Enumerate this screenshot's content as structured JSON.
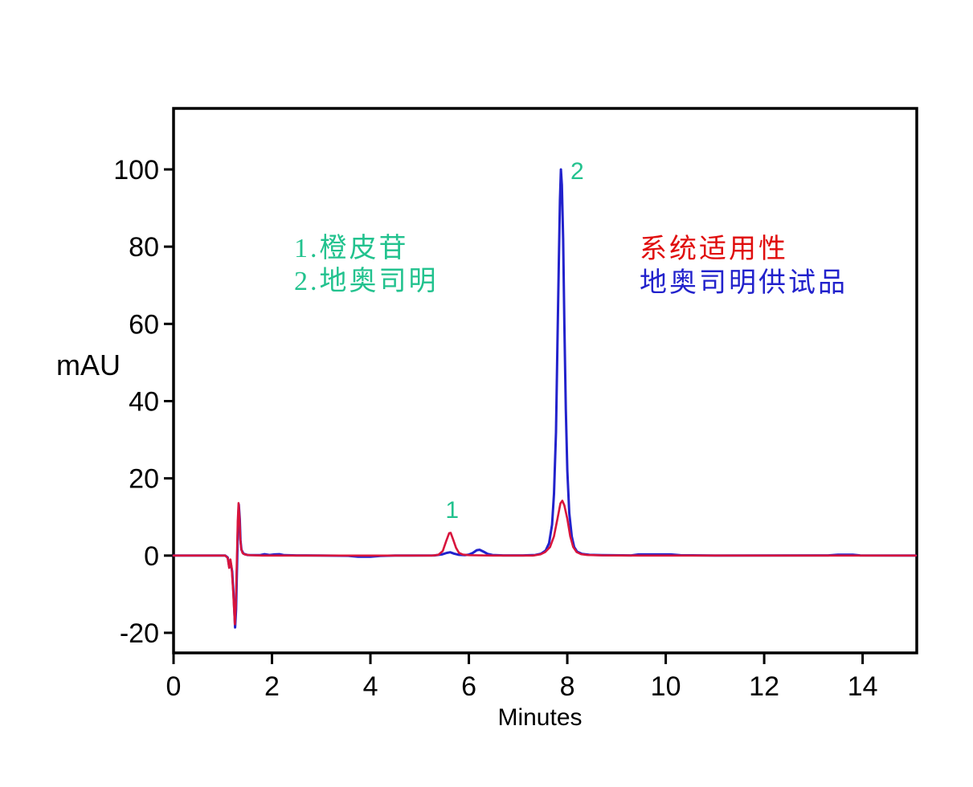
{
  "chart_data": {
    "type": "line",
    "title": "",
    "xlabel": "Minutes",
    "ylabel": "mAU",
    "xlim": [
      0,
      15.1
    ],
    "ylim": [
      -25.2,
      115.8
    ],
    "x_ticks": [
      0,
      2,
      4,
      6,
      8,
      10,
      12,
      14
    ],
    "y_ticks": [
      -20,
      0,
      20,
      40,
      60,
      80,
      100
    ],
    "grid": false,
    "legend_position": "inside-plot",
    "axis_color": "#000000",
    "series": [
      {
        "name": "地奥司明供试品",
        "color": "#2222cc",
        "points": [
          [
            0,
            0
          ],
          [
            1.05,
            0
          ],
          [
            1.1,
            -0.5
          ],
          [
            1.13,
            -2.8
          ],
          [
            1.16,
            -2.0
          ],
          [
            1.19,
            -4
          ],
          [
            1.22,
            -10
          ],
          [
            1.25,
            -18.6
          ],
          [
            1.27,
            -14
          ],
          [
            1.29,
            -3
          ],
          [
            1.31,
            8
          ],
          [
            1.325,
            13.2
          ],
          [
            1.345,
            9.5
          ],
          [
            1.36,
            4
          ],
          [
            1.38,
            1.5
          ],
          [
            1.42,
            0.5
          ],
          [
            1.5,
            0.15
          ],
          [
            1.75,
            0.1
          ],
          [
            1.85,
            0.35
          ],
          [
            1.95,
            0.15
          ],
          [
            2.05,
            0.3
          ],
          [
            2.15,
            0.35
          ],
          [
            2.25,
            0.1
          ],
          [
            2.5,
            0.05
          ],
          [
            3.0,
            0
          ],
          [
            3.55,
            -0.05
          ],
          [
            3.75,
            -0.3
          ],
          [
            4.0,
            -0.3
          ],
          [
            4.2,
            -0.1
          ],
          [
            4.5,
            0
          ],
          [
            5.3,
            0.05
          ],
          [
            5.45,
            0.3
          ],
          [
            5.55,
            0.7
          ],
          [
            5.62,
            0.85
          ],
          [
            5.7,
            0.5
          ],
          [
            5.8,
            0.2
          ],
          [
            5.92,
            0.1
          ],
          [
            6.0,
            0.25
          ],
          [
            6.08,
            0.7
          ],
          [
            6.16,
            1.4
          ],
          [
            6.22,
            1.5
          ],
          [
            6.3,
            1.0
          ],
          [
            6.38,
            0.45
          ],
          [
            6.48,
            0.15
          ],
          [
            6.7,
            0.05
          ],
          [
            7.1,
            0.05
          ],
          [
            7.35,
            0.15
          ],
          [
            7.47,
            0.5
          ],
          [
            7.56,
            1.3
          ],
          [
            7.63,
            3.2
          ],
          [
            7.69,
            8
          ],
          [
            7.73,
            16
          ],
          [
            7.77,
            32
          ],
          [
            7.8,
            55
          ],
          [
            7.83,
            78
          ],
          [
            7.85,
            92
          ],
          [
            7.87,
            100
          ],
          [
            7.89,
            96
          ],
          [
            7.915,
            82
          ],
          [
            7.94,
            60
          ],
          [
            7.97,
            38
          ],
          [
            8.0,
            22
          ],
          [
            8.04,
            11
          ],
          [
            8.09,
            5
          ],
          [
            8.14,
            2.2
          ],
          [
            8.2,
            1.0
          ],
          [
            8.3,
            0.45
          ],
          [
            8.45,
            0.2
          ],
          [
            8.7,
            0.1
          ],
          [
            9.3,
            0.05
          ],
          [
            9.45,
            0.3
          ],
          [
            10.1,
            0.3
          ],
          [
            10.3,
            0.08
          ],
          [
            11.0,
            0.02
          ],
          [
            13.3,
            0.05
          ],
          [
            13.5,
            0.22
          ],
          [
            13.8,
            0.22
          ],
          [
            13.95,
            0.05
          ],
          [
            15.08,
            0
          ]
        ]
      },
      {
        "name": "系统适用性",
        "color": "#d8143c",
        "points": [
          [
            0,
            0
          ],
          [
            1.05,
            0
          ],
          [
            1.1,
            -0.6
          ],
          [
            1.13,
            -3.2
          ],
          [
            1.155,
            -1.0
          ],
          [
            1.18,
            -3.0
          ],
          [
            1.21,
            -9
          ],
          [
            1.245,
            -17.8
          ],
          [
            1.265,
            -13
          ],
          [
            1.285,
            -2
          ],
          [
            1.305,
            9
          ],
          [
            1.32,
            13.6
          ],
          [
            1.34,
            10
          ],
          [
            1.355,
            4.5
          ],
          [
            1.375,
            1.8
          ],
          [
            1.4,
            0.7
          ],
          [
            1.45,
            0.25
          ],
          [
            1.55,
            0.1
          ],
          [
            1.8,
            0
          ],
          [
            3.6,
            0
          ],
          [
            5.25,
            0
          ],
          [
            5.38,
            0.2
          ],
          [
            5.47,
            1.2
          ],
          [
            5.54,
            3.8
          ],
          [
            5.6,
            5.8
          ],
          [
            5.63,
            5.9
          ],
          [
            5.68,
            4.2
          ],
          [
            5.74,
            2.0
          ],
          [
            5.8,
            0.7
          ],
          [
            5.88,
            0.25
          ],
          [
            6.0,
            0.1
          ],
          [
            6.5,
            0
          ],
          [
            7.3,
            0
          ],
          [
            7.45,
            0.3
          ],
          [
            7.55,
            0.9
          ],
          [
            7.65,
            2.2
          ],
          [
            7.73,
            5
          ],
          [
            7.8,
            9.5
          ],
          [
            7.86,
            13.5
          ],
          [
            7.9,
            14.2
          ],
          [
            7.94,
            13
          ],
          [
            8.0,
            9.5
          ],
          [
            8.06,
            5
          ],
          [
            8.12,
            2.2
          ],
          [
            8.19,
            0.9
          ],
          [
            8.28,
            0.35
          ],
          [
            8.4,
            0.15
          ],
          [
            8.7,
            0.05
          ],
          [
            9.5,
            0
          ],
          [
            15.08,
            0
          ]
        ]
      }
    ],
    "peak_labels": [
      {
        "text": "1",
        "x": 5.66,
        "y": 9.7,
        "color": "#22c28e"
      },
      {
        "text": "2",
        "x": 8.2,
        "y": 97.5,
        "color": "#22c28e"
      }
    ],
    "compound_legend": {
      "color": "#22c28e",
      "lines": [
        "1.橙皮苷",
        "2.地奥司明"
      ]
    },
    "trace_legend": [
      {
        "text": "系统适用性",
        "color": "#e00d0d"
      },
      {
        "text": "地奥司明供试品",
        "color": "#2222cc"
      }
    ]
  }
}
